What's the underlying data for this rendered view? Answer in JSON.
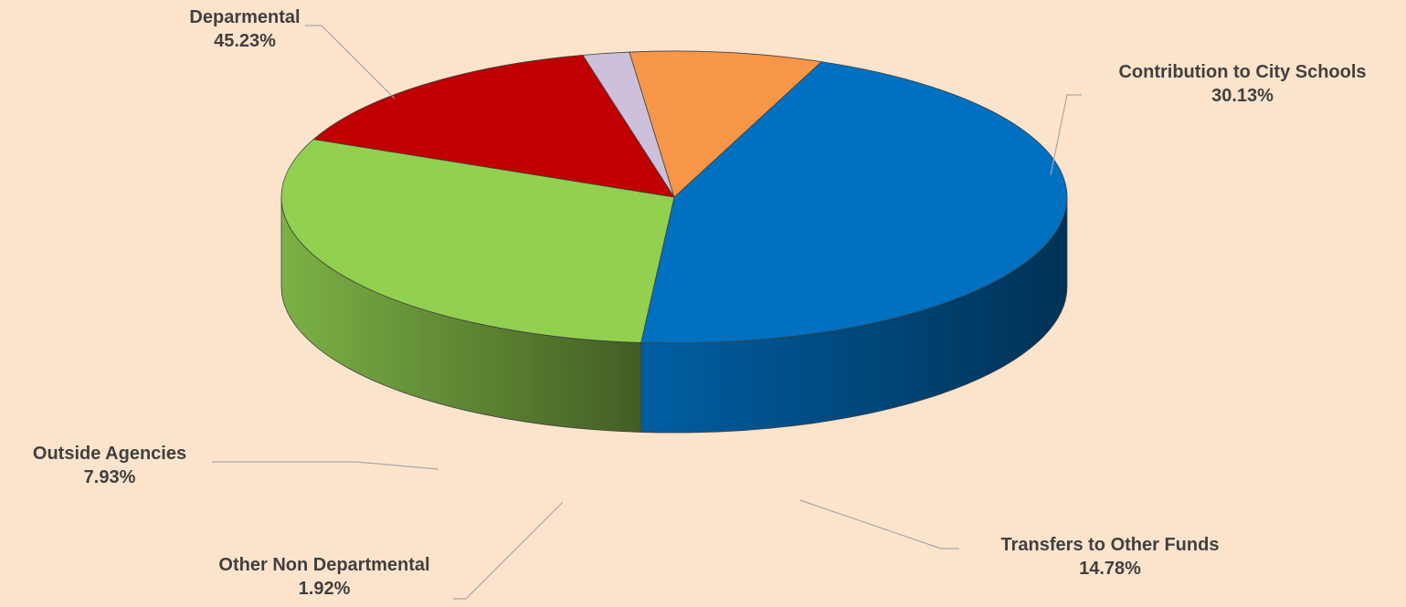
{
  "chart_data": {
    "type": "pie",
    "style": "3d-exploded-none",
    "title": "",
    "slices": [
      {
        "name": "Deparmental",
        "value": 45.23,
        "pct_label": "45.23%",
        "color": "#0070c0"
      },
      {
        "name": "Contribution to City Schools",
        "value": 30.13,
        "pct_label": "30.13%",
        "color": "#92d050"
      },
      {
        "name": "Transfers to Other Funds",
        "value": 14.78,
        "pct_label": "14.78%",
        "color": "#c00000"
      },
      {
        "name": "Other Non Departmental",
        "value": 1.92,
        "pct_label": "1.92%",
        "color": "#ccc0da"
      },
      {
        "name": "Outside Agencies",
        "value": 7.93,
        "pct_label": "7.93%",
        "color": "#f79646"
      }
    ],
    "legend": "none",
    "background": "#fce4cc"
  }
}
